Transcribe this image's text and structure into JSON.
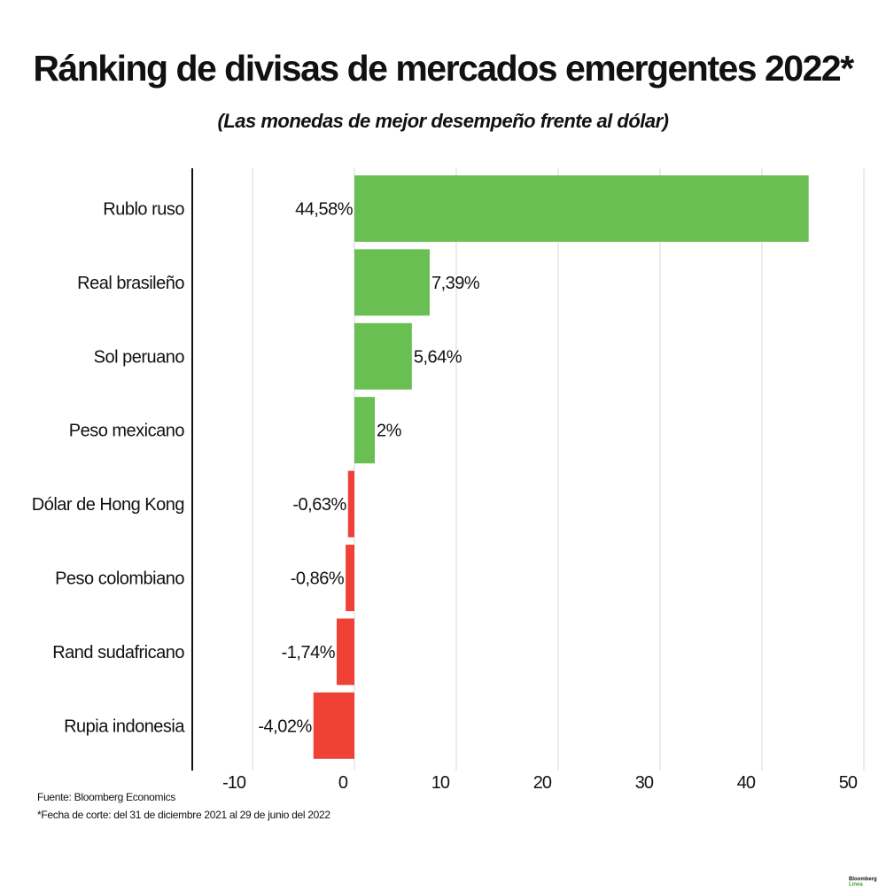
{
  "title": "Ránking de divisas de mercados emergentes 2022*",
  "subtitle": "(Las monedas de mejor desempeño frente al dólar)",
  "footer": {
    "source": "Fuente: Bloomberg Economics",
    "note": "*Fecha de corte: del 31 de diciembre 2021 al 29 de junio del 2022"
  },
  "logo": {
    "line1": "Bloomberg",
    "line2": "Línea"
  },
  "colors": {
    "positive": "#6abf52",
    "negative": "#ef4136",
    "grid": "#d9d9d9",
    "axis": "#111111"
  },
  "chart_data": {
    "type": "bar",
    "orientation": "horizontal",
    "categories": [
      "Rublo ruso",
      "Real brasileño",
      "Sol peruano",
      "Peso mexicano",
      "Dólar de Hong Kong",
      "Peso colombiano",
      "Rand sudafricano",
      "Rupia indonesia"
    ],
    "values": [
      44.58,
      7.39,
      5.64,
      2,
      -0.63,
      -0.86,
      -1.74,
      -4.02
    ],
    "data_labels": [
      "44,58%",
      "7,39%",
      "5,64%",
      "2%",
      "-0,63%",
      "-0,86%",
      "-1,74%",
      "-4,02%"
    ],
    "xlim": [
      -10,
      50
    ],
    "xticks": [
      -10,
      0,
      10,
      20,
      30,
      40,
      50
    ],
    "xtick_labels": [
      "-10",
      "0",
      "10",
      "20",
      "30",
      "40",
      "50"
    ],
    "grid": true,
    "unit": "%"
  }
}
